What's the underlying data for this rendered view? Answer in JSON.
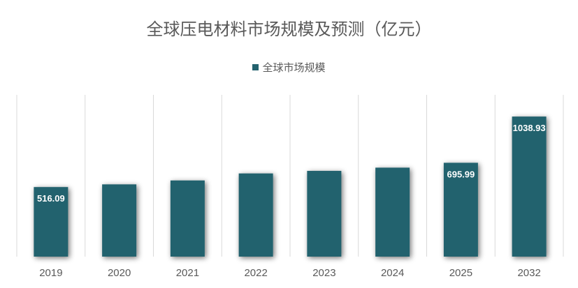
{
  "chart_data": {
    "type": "bar",
    "title": "全球压电材料市场规模及预测（亿元）",
    "categories": [
      "2019",
      "2020",
      "2021",
      "2022",
      "2023",
      "2024",
      "2025",
      "2032"
    ],
    "series": [
      {
        "name": "全球市场规模",
        "values": [
          516.09,
          536,
          565,
          617,
          636,
          660,
          695.99,
          1038.93
        ],
        "data_labels": [
          "516.09",
          "",
          "",
          "",
          "",
          "",
          "695.99",
          "1038.93"
        ],
        "color": "#24626E"
      }
    ],
    "ylim": [
      0,
      1200
    ],
    "grid": "vertical separators between categories",
    "legend_position": "top"
  }
}
